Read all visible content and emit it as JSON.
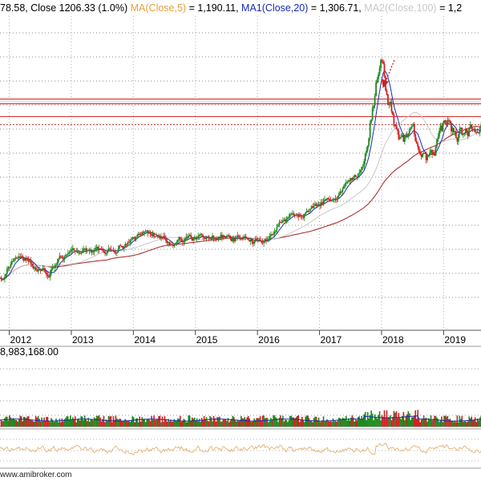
{
  "header": {
    "ohlc_fragment": "78.58, Close 1206.33 (1.0%)",
    "ma5_label": "MA(Close,5)",
    "ma5_value": " = 1,190.11,",
    "ma20_label": "MA1(Close,20)",
    "ma20_value": " = 1,306.71,",
    "ma100_label": "MA2(Close,100)",
    "ma100_value": " = 1,2",
    "colors": {
      "ma5": "#e8a040",
      "ma20": "#1a2ab0",
      "ma100": "#c8c8c8"
    }
  },
  "volume_header": {
    "value": "8,983,168.00"
  },
  "footer": {
    "text": "www.amibroker.com"
  },
  "x_axis": {
    "years": [
      "2012",
      "2013",
      "2014",
      "2015",
      "2016",
      "2017",
      "2018",
      "2019"
    ]
  },
  "chart_data": {
    "type": "candlestick",
    "x_range": [
      "2011-09",
      "2019-09"
    ],
    "y_range": [
      1050,
      1380
    ],
    "annotations": {
      "arrow_at": "2018-01",
      "resistance_lines": [
        "upper",
        "lower"
      ]
    },
    "price_path": [
      {
        "t": 2011.6,
        "v": 1110
      },
      {
        "t": 2011.9,
        "v": 1105
      },
      {
        "t": 2012.1,
        "v": 1128
      },
      {
        "t": 2012.35,
        "v": 1122
      },
      {
        "t": 2012.6,
        "v": 1108
      },
      {
        "t": 2012.9,
        "v": 1126
      },
      {
        "t": 2013.2,
        "v": 1136
      },
      {
        "t": 2013.5,
        "v": 1132
      },
      {
        "t": 2013.9,
        "v": 1140
      },
      {
        "t": 2014.2,
        "v": 1150
      },
      {
        "t": 2014.6,
        "v": 1145
      },
      {
        "t": 2015.0,
        "v": 1142
      },
      {
        "t": 2015.4,
        "v": 1150
      },
      {
        "t": 2015.9,
        "v": 1140
      },
      {
        "t": 2016.2,
        "v": 1150
      },
      {
        "t": 2016.6,
        "v": 1168
      },
      {
        "t": 2017.0,
        "v": 1182
      },
      {
        "t": 2017.4,
        "v": 1195
      },
      {
        "t": 2017.7,
        "v": 1215
      },
      {
        "t": 2017.85,
        "v": 1265
      },
      {
        "t": 2018.0,
        "v": 1330
      },
      {
        "t": 2018.1,
        "v": 1285
      },
      {
        "t": 2018.3,
        "v": 1240
      },
      {
        "t": 2018.5,
        "v": 1255
      },
      {
        "t": 2018.75,
        "v": 1232
      },
      {
        "t": 2019.0,
        "v": 1255
      },
      {
        "t": 2019.4,
        "v": 1262
      },
      {
        "t": 2019.7,
        "v": 1266
      }
    ]
  }
}
